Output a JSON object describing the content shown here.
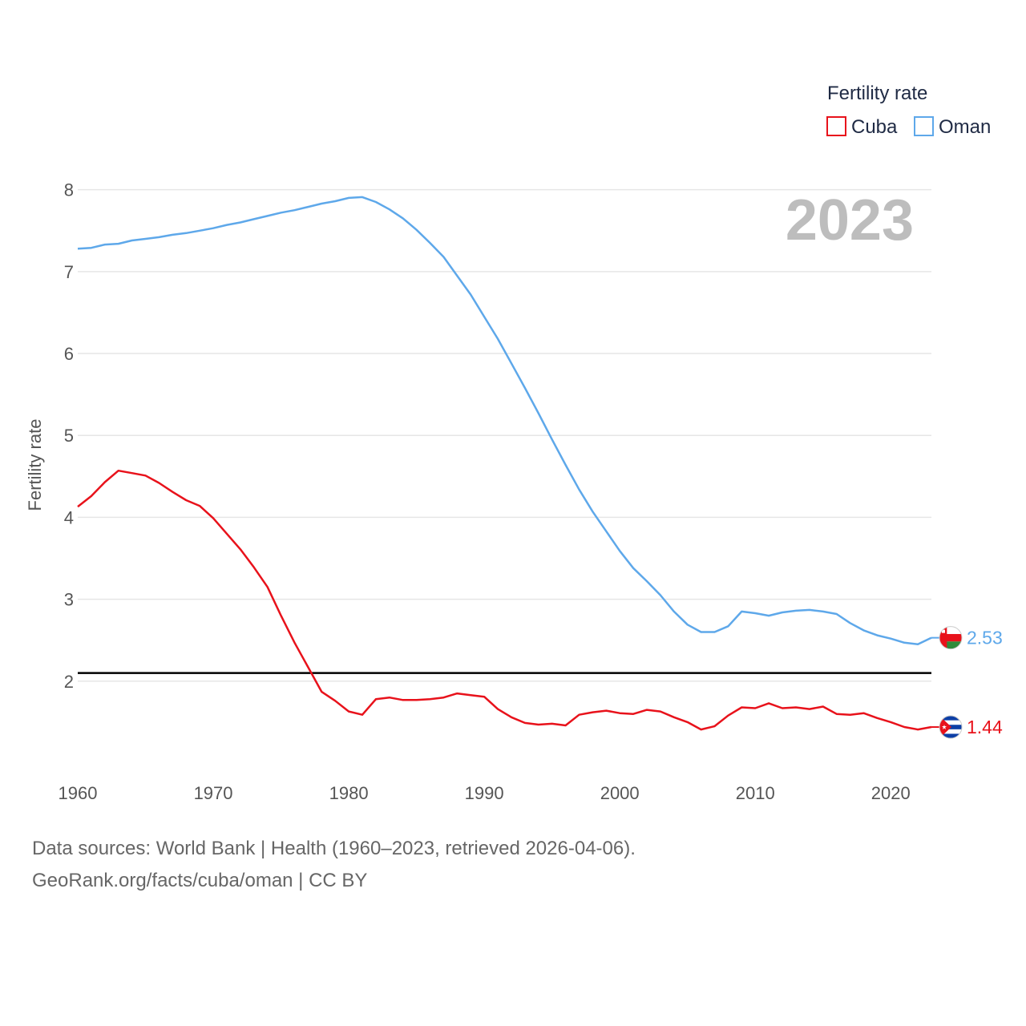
{
  "chart_data": {
    "type": "line",
    "legend_title": "Fertility rate",
    "ylabel": "Fertility rate",
    "xlabel": "",
    "year_label": "2023",
    "xlim": [
      1960,
      2023
    ],
    "ylim": [
      1.0,
      8.3
    ],
    "x_ticks": [
      1960,
      1970,
      1980,
      1990,
      2000,
      2010,
      2020
    ],
    "y_ticks": [
      2,
      3,
      4,
      5,
      6,
      7,
      8
    ],
    "grid": true,
    "legend_position": "top-right",
    "reference_line": {
      "value": 2.1,
      "color": "#000000"
    },
    "x": [
      1960,
      1961,
      1962,
      1963,
      1964,
      1965,
      1966,
      1967,
      1968,
      1969,
      1970,
      1971,
      1972,
      1973,
      1974,
      1975,
      1976,
      1977,
      1978,
      1979,
      1980,
      1981,
      1982,
      1983,
      1984,
      1985,
      1986,
      1987,
      1988,
      1989,
      1990,
      1991,
      1992,
      1993,
      1994,
      1995,
      1996,
      1997,
      1998,
      1999,
      2000,
      2001,
      2002,
      2003,
      2004,
      2005,
      2006,
      2007,
      2008,
      2009,
      2010,
      2011,
      2012,
      2013,
      2014,
      2015,
      2016,
      2017,
      2018,
      2019,
      2020,
      2021,
      2022,
      2023
    ],
    "series": [
      {
        "name": "Cuba",
        "color": "#e8121b",
        "end_label": "1.44",
        "flag": "cuba",
        "values": [
          4.13,
          4.26,
          4.43,
          4.57,
          4.54,
          4.51,
          4.42,
          4.31,
          4.21,
          4.14,
          3.99,
          3.8,
          3.61,
          3.39,
          3.15,
          2.8,
          2.47,
          2.17,
          1.87,
          1.76,
          1.63,
          1.59,
          1.78,
          1.8,
          1.77,
          1.77,
          1.78,
          1.8,
          1.85,
          1.83,
          1.81,
          1.66,
          1.56,
          1.49,
          1.47,
          1.48,
          1.46,
          1.59,
          1.62,
          1.64,
          1.61,
          1.6,
          1.65,
          1.63,
          1.56,
          1.5,
          1.41,
          1.45,
          1.58,
          1.68,
          1.67,
          1.73,
          1.67,
          1.68,
          1.66,
          1.69,
          1.6,
          1.59,
          1.61,
          1.55,
          1.5,
          1.44,
          1.41,
          1.44
        ]
      },
      {
        "name": "Oman",
        "color": "#5ea8ea",
        "end_label": "2.53",
        "flag": "oman",
        "values": [
          7.28,
          7.29,
          7.33,
          7.34,
          7.38,
          7.4,
          7.42,
          7.45,
          7.47,
          7.5,
          7.53,
          7.57,
          7.6,
          7.64,
          7.68,
          7.72,
          7.75,
          7.79,
          7.83,
          7.86,
          7.9,
          7.91,
          7.85,
          7.76,
          7.65,
          7.51,
          7.35,
          7.18,
          6.95,
          6.72,
          6.45,
          6.18,
          5.88,
          5.58,
          5.27,
          4.95,
          4.64,
          4.34,
          4.07,
          3.83,
          3.59,
          3.38,
          3.22,
          3.05,
          2.85,
          2.69,
          2.6,
          2.6,
          2.67,
          2.85,
          2.83,
          2.8,
          2.84,
          2.86,
          2.87,
          2.85,
          2.82,
          2.71,
          2.62,
          2.56,
          2.52,
          2.47,
          2.45,
          2.53
        ]
      }
    ]
  },
  "footer": {
    "source": "Data sources: World Bank | Health (1960–2023, retrieved 2026-04-06).",
    "credit": "GeoRank.org/facts/cuba/oman | CC BY"
  }
}
